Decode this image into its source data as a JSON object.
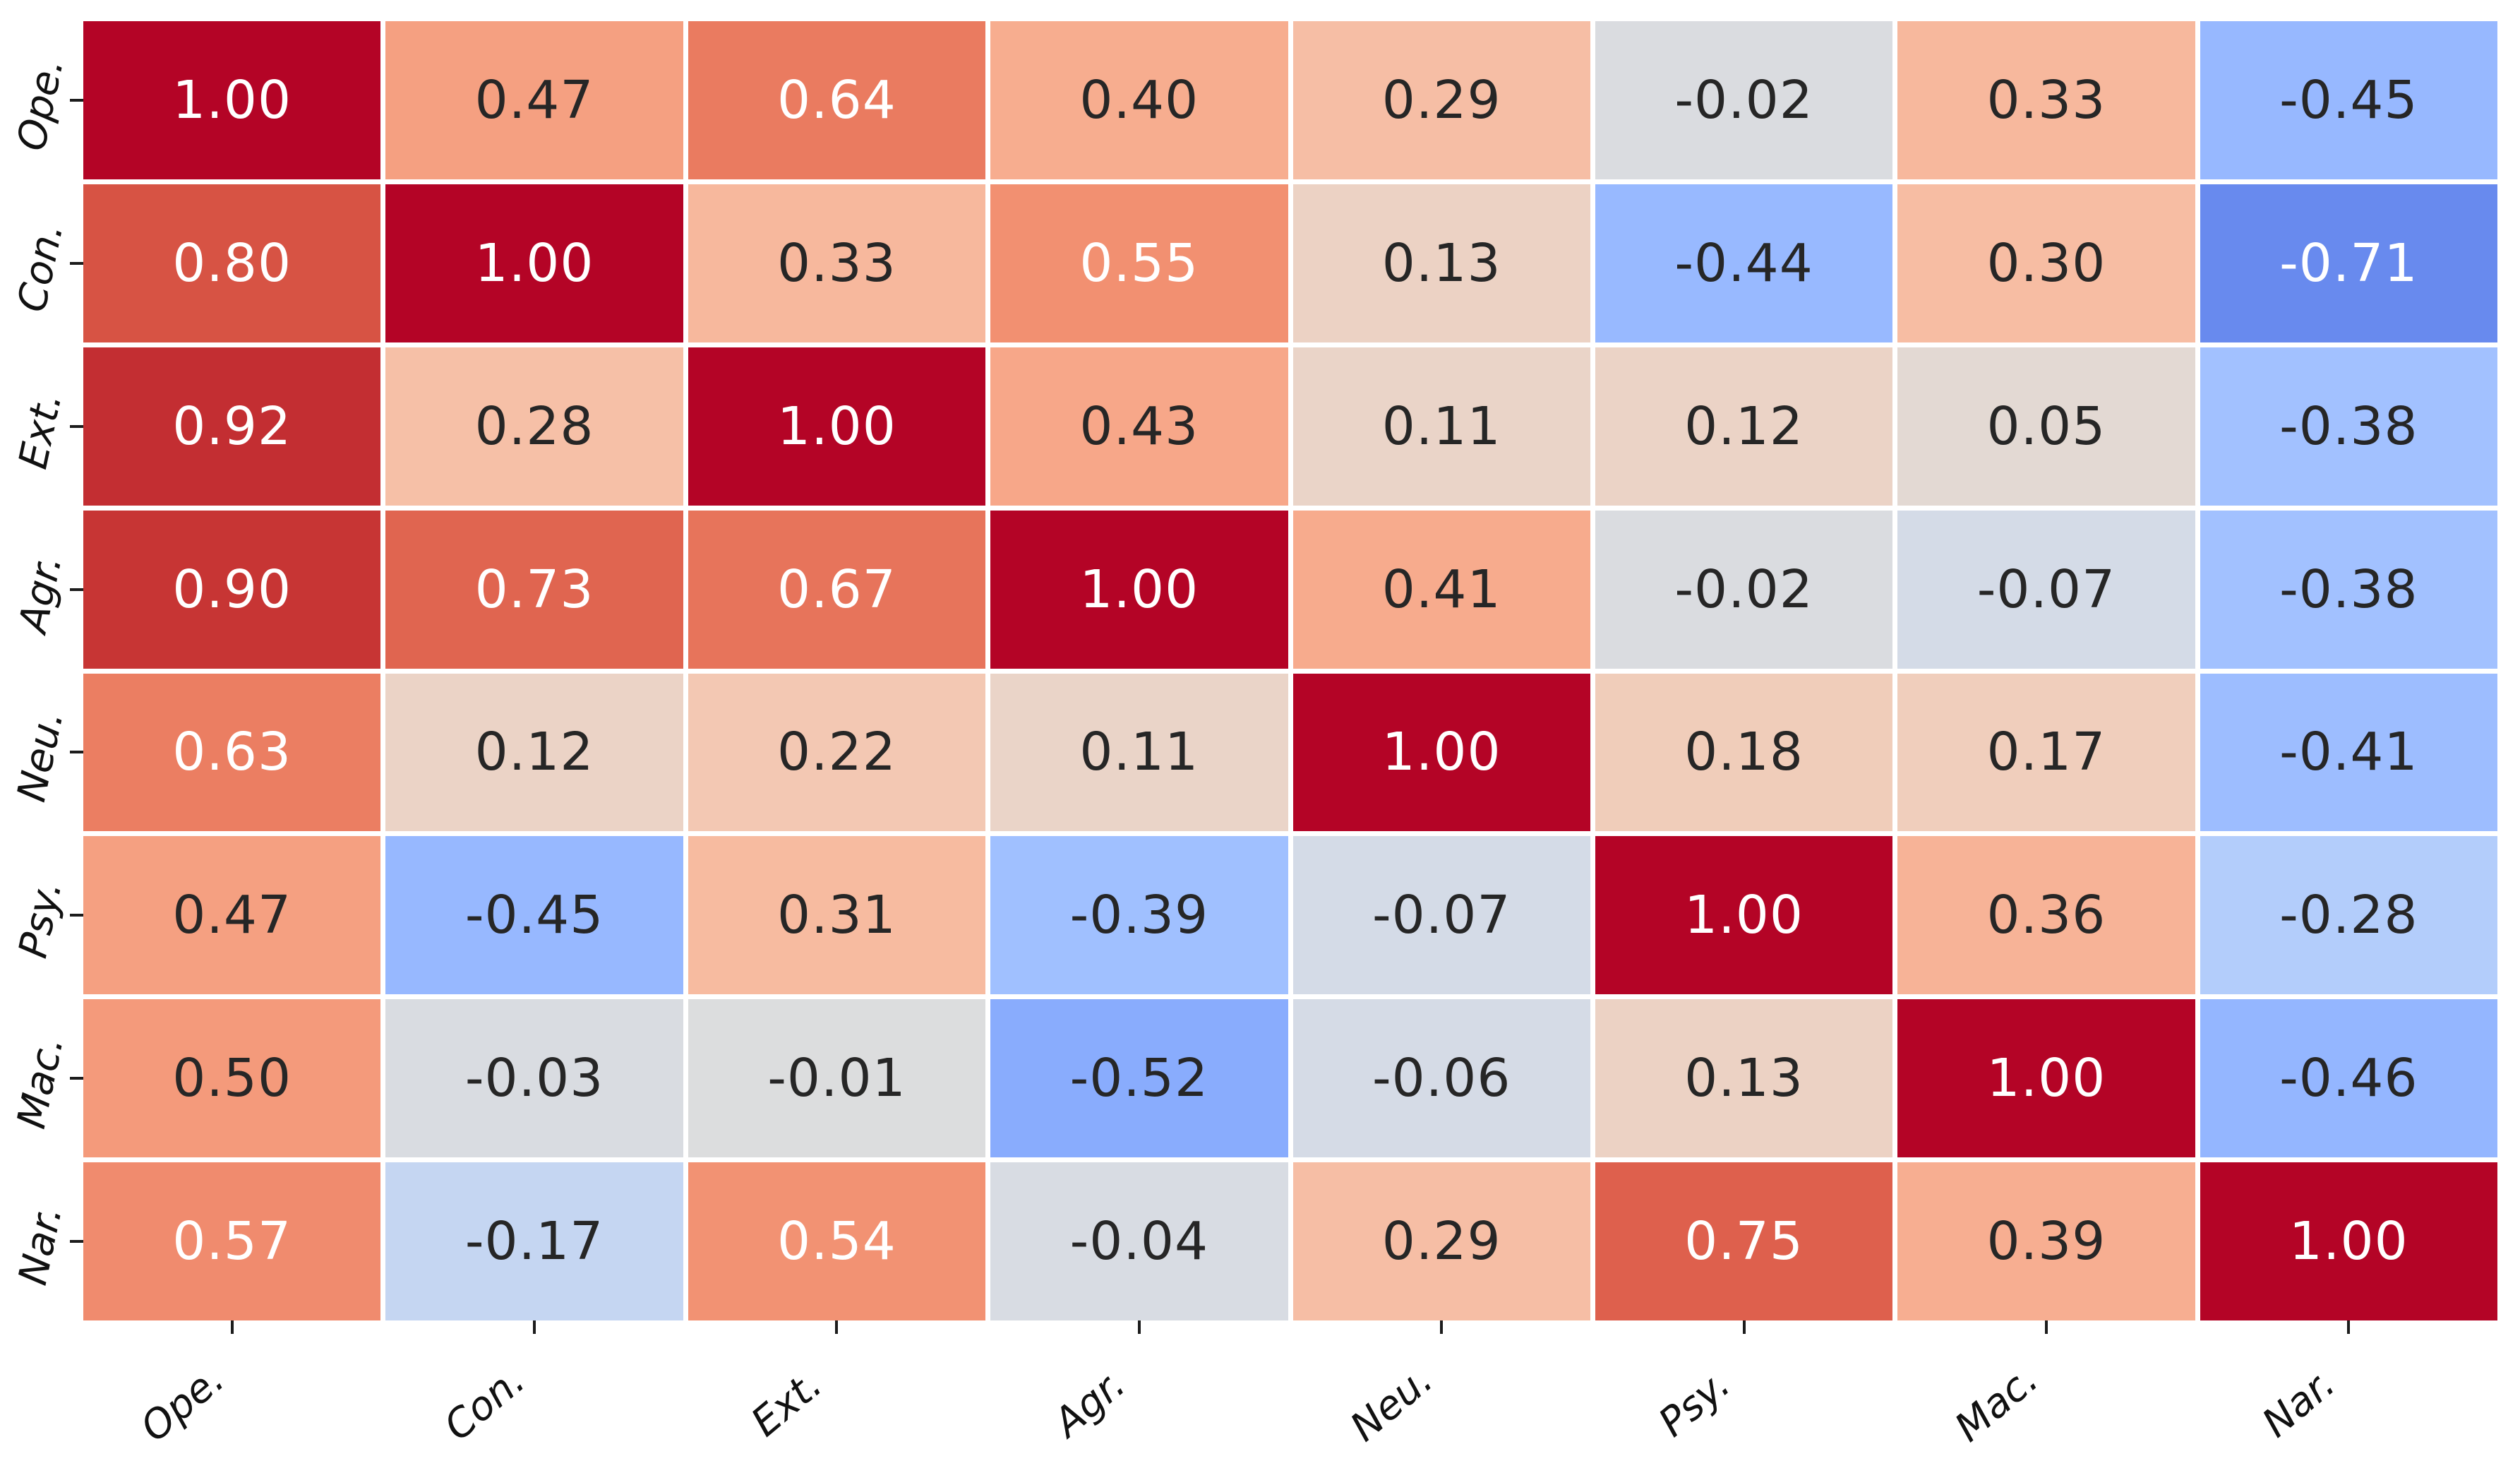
{
  "figure": {
    "background": "#ffffff"
  },
  "chart_data": {
    "type": "heatmap",
    "title": "",
    "categories_x": [
      "Ope.",
      "Con.",
      "Ext.",
      "Agr.",
      "Neu.",
      "Psy.",
      "Mac.",
      "Nar."
    ],
    "categories_y": [
      "Ope.",
      "Con.",
      "Ext.",
      "Agr.",
      "Neu.",
      "Psy.",
      "Mac.",
      "Nar."
    ],
    "values": [
      [
        1.0,
        0.47,
        0.64,
        0.4,
        0.29,
        -0.02,
        0.33,
        -0.45
      ],
      [
        0.8,
        1.0,
        0.33,
        0.55,
        0.13,
        -0.44,
        0.3,
        -0.71
      ],
      [
        0.92,
        0.28,
        1.0,
        0.43,
        0.11,
        0.12,
        0.05,
        -0.38
      ],
      [
        0.9,
        0.73,
        0.67,
        1.0,
        0.41,
        -0.02,
        -0.07,
        -0.38
      ],
      [
        0.63,
        0.12,
        0.22,
        0.11,
        1.0,
        0.18,
        0.17,
        -0.41
      ],
      [
        0.47,
        -0.45,
        0.31,
        -0.39,
        -0.07,
        1.0,
        0.36,
        -0.28
      ],
      [
        0.5,
        -0.03,
        -0.01,
        -0.52,
        -0.06,
        0.13,
        1.0,
        -0.46
      ],
      [
        0.57,
        -0.17,
        0.54,
        -0.04,
        0.29,
        0.75,
        0.39,
        1.0
      ]
    ],
    "cell_colors": [
      [
        "#b40426",
        "#f5a081",
        "#ea7b60",
        "#f7ad8f",
        "#f6bea5",
        "#dadce0",
        "#f7b89d",
        "#97b8ff"
      ],
      [
        "#d75344",
        "#b40426",
        "#f7b89d",
        "#f29071",
        "#ecd2c4",
        "#98b9ff",
        "#f7bda3",
        "#688aee"
      ],
      [
        "#c32e32",
        "#f6c0a7",
        "#b40426",
        "#f7a789",
        "#ead4c8",
        "#ebd3c6",
        "#e3d9d3",
        "#a2c1ff"
      ],
      [
        "#c73534",
        "#e06550",
        "#e7745b",
        "#b40426",
        "#f7ab8d",
        "#dadce0",
        "#d4dbe7",
        "#a2c1ff"
      ],
      [
        "#eb7e62",
        "#ebd3c6",
        "#f3c8b3",
        "#ead4c8",
        "#b40426",
        "#f0cdba",
        "#f0cebc",
        "#9dbdff"
      ],
      [
        "#f5a081",
        "#97b8ff",
        "#f7bba0",
        "#a0c0ff",
        "#d4dbe7",
        "#b40426",
        "#f7b397",
        "#b3cdfb"
      ],
      [
        "#f49a7b",
        "#d9dce1",
        "#dcddde",
        "#89acfd",
        "#d5dbe6",
        "#ecd2c4",
        "#b40426",
        "#94b6ff"
      ],
      [
        "#f08b6e",
        "#c5d6f2",
        "#f29273",
        "#d8dce3",
        "#f6bea5",
        "#de604d",
        "#f7ae91",
        "#b40426"
      ]
    ],
    "value_decimals": 2,
    "colormap": "coolwarm",
    "vmin": -1,
    "vmax": 1,
    "legend_position": "none",
    "grid_on": true,
    "colors": {
      "annotation_dark": "#262626",
      "annotation_light": "#ffffff",
      "tick_mark": "#1c1c1c",
      "tick_label": "#111111",
      "gridline": "#ffffff"
    }
  }
}
